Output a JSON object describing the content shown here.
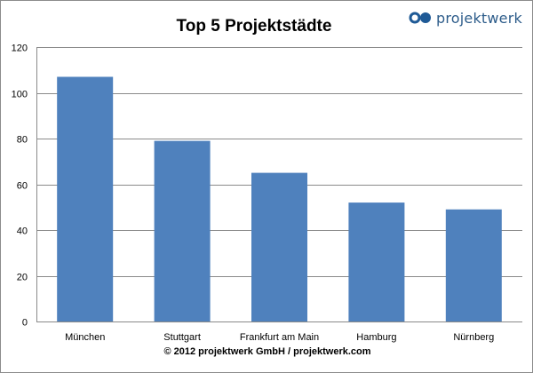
{
  "chart_data": {
    "type": "bar",
    "title": "Top 5 Projektstädte",
    "categories": [
      "München",
      "Stuttgart",
      "Frankfurt am Main",
      "Hamburg",
      "Nürnberg"
    ],
    "values": [
      107,
      79,
      65,
      52,
      49
    ],
    "xlabel": "",
    "ylabel": "",
    "ylim": [
      0,
      120
    ],
    "yticks": [
      0,
      20,
      40,
      60,
      80,
      100,
      120
    ],
    "grid": true,
    "legend": "none",
    "bar_color": "#4f81bd"
  },
  "brand": {
    "name": "projektwerk",
    "logo_icon": "two-circles-logo-icon",
    "color": "#2d5c8a"
  },
  "footer": {
    "text": "© 2012 projektwerk GmbH  /  projektwerk.com"
  }
}
